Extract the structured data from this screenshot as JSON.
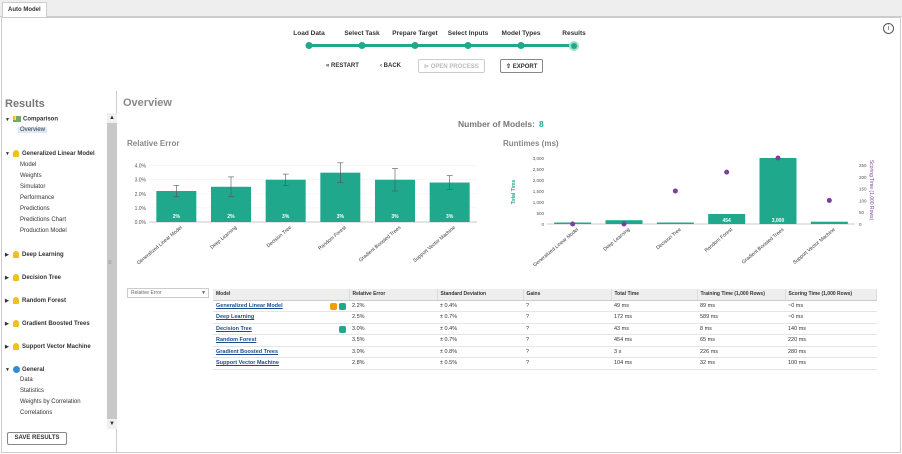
{
  "tab": {
    "label": "Auto Model"
  },
  "workflow": {
    "steps": [
      "Load Data",
      "Select Task",
      "Prepare Target",
      "Select Inputs",
      "Model Types",
      "Results"
    ]
  },
  "toolbar": {
    "restart": "RESTART",
    "back": "BACK",
    "open_process": "OPEN PROCESS",
    "export": "EXPORT"
  },
  "sidebar": {
    "title": "Results",
    "groups": [
      {
        "label": "Comparison",
        "icon": "comparison-icon",
        "children": [
          "Overview"
        ]
      },
      {
        "label": "Generalized Linear Model",
        "icon": "lightbulb-icon",
        "children": [
          "Model",
          "Weights",
          "Simulator",
          "Performance",
          "Predictions",
          "Predictions Chart",
          "Production Model"
        ]
      },
      {
        "label": "Deep Learning",
        "icon": "lightbulb-icon",
        "children": []
      },
      {
        "label": "Decision Tree",
        "icon": "lightbulb-icon",
        "children": []
      },
      {
        "label": "Random Forest",
        "icon": "lightbulb-icon",
        "children": []
      },
      {
        "label": "Gradient Boosted Trees",
        "icon": "lightbulb-icon",
        "children": []
      },
      {
        "label": "Support Vector Machine",
        "icon": "lightbulb-icon",
        "children": []
      },
      {
        "label": "General",
        "icon": "info-icon",
        "children": [
          "Data",
          "Statistics",
          "Weights by Correlation",
          "Correlations"
        ]
      }
    ],
    "save_button": "SAVE RESULTS"
  },
  "main": {
    "title": "Overview",
    "num_models_label": "Number of Models:",
    "num_models_value": "8",
    "metric_select": "Relative Error"
  },
  "colors": {
    "accent": "#1fa88c",
    "purple": "#7b3f9e"
  },
  "chart_data": [
    {
      "type": "bar",
      "title": "Relative Error",
      "categories": [
        "Generalized Linear Model",
        "Deep Learning",
        "Decision Tree",
        "Random Forest",
        "Gradient Boosted Trees",
        "Support Vector Machine"
      ],
      "values": [
        2.2,
        2.5,
        3.0,
        3.5,
        3.0,
        2.8
      ],
      "errors": [
        0.4,
        0.7,
        0.4,
        0.7,
        0.8,
        0.5
      ],
      "data_labels": [
        "2%",
        "2%",
        "3%",
        "3%",
        "3%",
        "3%"
      ],
      "y_ticks": [
        "0.0%",
        "1.0%",
        "2.0%",
        "3.0%",
        "4.0%"
      ],
      "ylim": [
        0,
        4.4
      ]
    },
    {
      "type": "bar",
      "title": "Runtimes (ms)",
      "categories": [
        "Generalized Linear Model",
        "Deep Learning",
        "Decision Tree",
        "Random Forest",
        "Gradient Boosted Trees",
        "Support Vector Machine"
      ],
      "series": [
        {
          "name": "Total Time",
          "type": "bar",
          "values": [
            49,
            172,
            43,
            454,
            3000,
            104
          ]
        },
        {
          "name": "Scoring Time (1,000 Rows)",
          "type": "scatter",
          "values": [
            0,
            0,
            140,
            220,
            280,
            100
          ]
        }
      ],
      "data_labels": [
        "",
        "",
        "",
        "454",
        "3,000",
        ""
      ],
      "ylabel": "Total Time",
      "y2label": "Scoring Time (1,000 Rows)",
      "y_ticks": [
        "0",
        "500",
        "1,000",
        "1,500",
        "2,000",
        "2,500",
        "3,000"
      ],
      "y2_ticks": [
        "0",
        "50",
        "100",
        "150",
        "200",
        "250"
      ],
      "ylim": [
        0,
        3000
      ],
      "y2lim": [
        0,
        280
      ]
    }
  ],
  "table": {
    "headers": [
      "Model",
      "Relative Error",
      "Standard Deviation",
      "Gains",
      "Total Time",
      "Training Time (1,000 Rows)",
      "Scoring Time (1,000 Rows)"
    ],
    "rows": [
      {
        "model": "Generalized Linear Model",
        "err": "2.2%",
        "std": "± 0.4%",
        "gains": "?",
        "total": "49 ms",
        "train": "89 ms",
        "score": "~0 ms",
        "icons": [
          "person-icon",
          "runner-icon"
        ]
      },
      {
        "model": "Deep Learning",
        "err": "2.5%",
        "std": "± 0.7%",
        "gains": "?",
        "total": "172 ms",
        "train": "589 ms",
        "score": "~0 ms",
        "icons": []
      },
      {
        "model": "Decision Tree",
        "err": "3.0%",
        "std": "± 0.4%",
        "gains": "?",
        "total": "43 ms",
        "train": "8 ms",
        "score": "140 ms",
        "icons": [
          "runner-icon"
        ]
      },
      {
        "model": "Random Forest",
        "err": "3.5%",
        "std": "± 0.7%",
        "gains": "?",
        "total": "454 ms",
        "train": "65 ms",
        "score": "220 ms",
        "icons": []
      },
      {
        "model": "Gradient Boosted Trees",
        "err": "3.0%",
        "std": "± 0.8%",
        "gains": "?",
        "total": "3 s",
        "train": "226 ms",
        "score": "280 ms",
        "icons": []
      },
      {
        "model": "Support Vector Machine",
        "err": "2.8%",
        "std": "± 0.5%",
        "gains": "?",
        "total": "104 ms",
        "train": "32 ms",
        "score": "100 ms",
        "icons": []
      }
    ]
  }
}
